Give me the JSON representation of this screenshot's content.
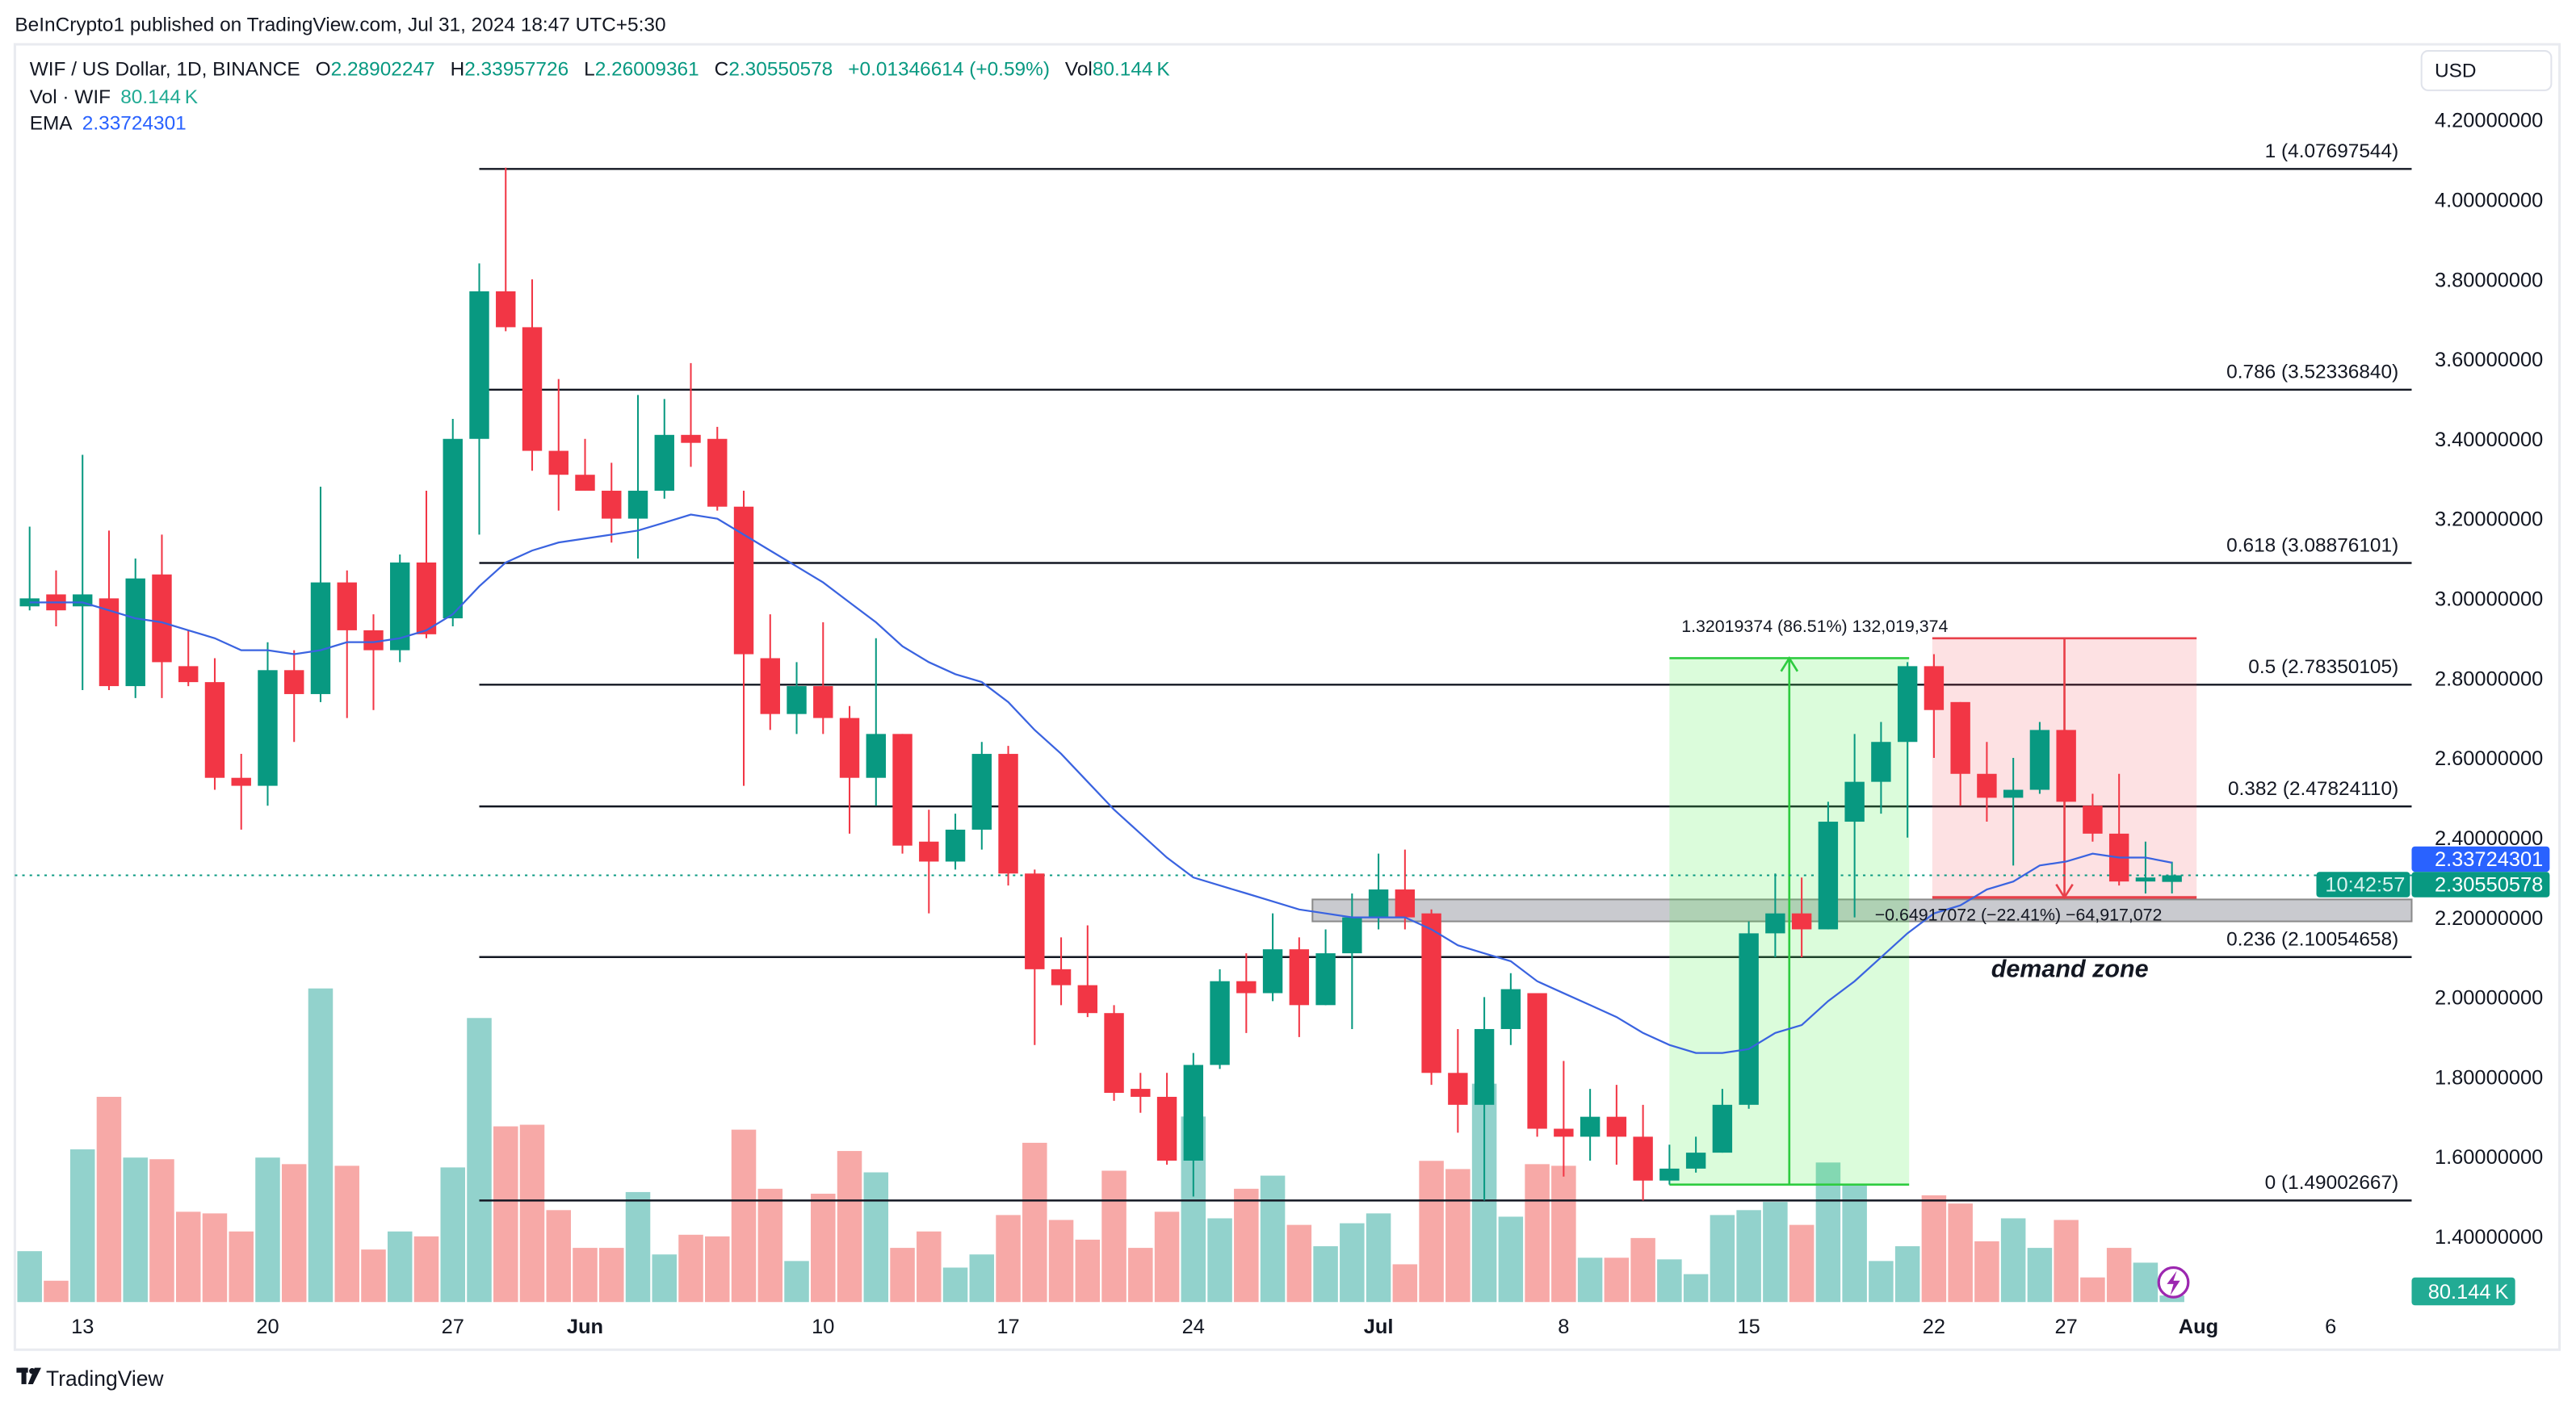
{
  "publish_line": "BeInCrypto1 published on TradingView.com, Jul 31, 2024 18:47 UTC+5:30",
  "legend": {
    "symbol": "WIF / US Dollar, 1D, BINANCE",
    "o_label": "O",
    "o": "2.28902247",
    "h_label": "H",
    "h": "2.33957726",
    "l_label": "L",
    "l": "2.26009361",
    "c_label": "C",
    "c": "2.30550578",
    "change": "+0.01346614 (+0.59%)",
    "vol_label": "Vol",
    "vol": "80.144 K",
    "vol_ind_label": "Vol · WIF",
    "vol_ind_value": "80.144 K",
    "ema_label": "EMA",
    "ema_value": "2.33724301"
  },
  "currency_button": "USD",
  "colors": {
    "up": "#089981",
    "down": "#f23645",
    "vol_up": "#92d2cc",
    "vol_down": "#f7a9a7",
    "ema": "#3a63e0",
    "lightning": "#9c27b0"
  },
  "price_tags": {
    "ema": "2.33724301",
    "last": "2.30550578",
    "countdown": "10:42:57",
    "volume": "80.144 K"
  },
  "logo": "TradingView",
  "annotations": {
    "demand_zone": "demand zone",
    "up_measure": "1.32019374 (86.51%) 132,019,374",
    "down_measure": "−0.64917072 (−22.41%) −64,917,072"
  },
  "chart_data": {
    "type": "candlestick",
    "symbol": "WIF / US Dollar",
    "interval": "1D",
    "ylim": [
      1.3,
      4.3
    ],
    "y_ticks": [
      "4.20000000",
      "4.00000000",
      "3.80000000",
      "3.60000000",
      "3.40000000",
      "3.20000000",
      "3.00000000",
      "2.80000000",
      "2.60000000",
      "2.40000000",
      "2.20000000",
      "2.00000000",
      "1.80000000",
      "1.60000000",
      "1.40000000"
    ],
    "x_ticks": [
      {
        "date": "2024-05-13",
        "label": "13",
        "bold": false
      },
      {
        "date": "2024-05-20",
        "label": "20",
        "bold": false
      },
      {
        "date": "2024-05-27",
        "label": "27",
        "bold": false
      },
      {
        "date": "2024-06-01",
        "label": "Jun",
        "bold": true
      },
      {
        "date": "2024-06-10",
        "label": "10",
        "bold": false
      },
      {
        "date": "2024-06-17",
        "label": "17",
        "bold": false
      },
      {
        "date": "2024-06-24",
        "label": "24",
        "bold": false
      },
      {
        "date": "2024-07-01",
        "label": "Jul",
        "bold": true
      },
      {
        "date": "2024-07-08",
        "label": "8",
        "bold": false
      },
      {
        "date": "2024-07-15",
        "label": "15",
        "bold": false
      },
      {
        "date": "2024-07-22",
        "label": "22",
        "bold": false
      },
      {
        "date": "2024-07-27",
        "label": "27",
        "bold": false
      },
      {
        "date": "2024-08-01",
        "label": "Aug",
        "bold": true
      },
      {
        "date": "2024-08-06",
        "label": "6",
        "bold": false
      }
    ],
    "candles": [
      {
        "date": "2024-05-11",
        "o": 2.98,
        "h": 3.18,
        "l": 2.97,
        "c": 3.0
      },
      {
        "date": "2024-05-12",
        "o": 3.01,
        "h": 3.07,
        "l": 2.93,
        "c": 2.97
      },
      {
        "date": "2024-05-13",
        "o": 2.98,
        "h": 3.36,
        "l": 2.77,
        "c": 3.01
      },
      {
        "date": "2024-05-14",
        "o": 3.0,
        "h": 3.17,
        "l": 2.77,
        "c": 2.78
      },
      {
        "date": "2024-05-15",
        "o": 2.78,
        "h": 3.1,
        "l": 2.75,
        "c": 3.05
      },
      {
        "date": "2024-05-16",
        "o": 3.06,
        "h": 3.16,
        "l": 2.75,
        "c": 2.84
      },
      {
        "date": "2024-05-17",
        "o": 2.83,
        "h": 2.92,
        "l": 2.78,
        "c": 2.79
      },
      {
        "date": "2024-05-18",
        "o": 2.79,
        "h": 2.85,
        "l": 2.52,
        "c": 2.55
      },
      {
        "date": "2024-05-19",
        "o": 2.55,
        "h": 2.61,
        "l": 2.42,
        "c": 2.53
      },
      {
        "date": "2024-05-20",
        "o": 2.53,
        "h": 2.89,
        "l": 2.48,
        "c": 2.82
      },
      {
        "date": "2024-05-21",
        "o": 2.82,
        "h": 2.87,
        "l": 2.64,
        "c": 2.76
      },
      {
        "date": "2024-05-22",
        "o": 2.76,
        "h": 3.28,
        "l": 2.74,
        "c": 3.04
      },
      {
        "date": "2024-05-23",
        "o": 3.04,
        "h": 3.07,
        "l": 2.7,
        "c": 2.92
      },
      {
        "date": "2024-05-24",
        "o": 2.92,
        "h": 2.96,
        "l": 2.72,
        "c": 2.87
      },
      {
        "date": "2024-05-25",
        "o": 2.87,
        "h": 3.11,
        "l": 2.84,
        "c": 3.09
      },
      {
        "date": "2024-05-26",
        "o": 3.09,
        "h": 3.27,
        "l": 2.9,
        "c": 2.91
      },
      {
        "date": "2024-05-27",
        "o": 2.95,
        "h": 3.45,
        "l": 2.93,
        "c": 3.4
      },
      {
        "date": "2024-05-28",
        "o": 3.4,
        "h": 3.84,
        "l": 3.16,
        "c": 3.77
      },
      {
        "date": "2024-05-29",
        "o": 3.77,
        "h": 4.08,
        "l": 3.67,
        "c": 3.68
      },
      {
        "date": "2024-05-30",
        "o": 3.68,
        "h": 3.8,
        "l": 3.32,
        "c": 3.37
      },
      {
        "date": "2024-05-31",
        "o": 3.37,
        "h": 3.55,
        "l": 3.22,
        "c": 3.31
      },
      {
        "date": "2024-06-01",
        "o": 3.31,
        "h": 3.4,
        "l": 3.27,
        "c": 3.27
      },
      {
        "date": "2024-06-02",
        "o": 3.27,
        "h": 3.34,
        "l": 3.14,
        "c": 3.2
      },
      {
        "date": "2024-06-03",
        "o": 3.2,
        "h": 3.51,
        "l": 3.1,
        "c": 3.27
      },
      {
        "date": "2024-06-04",
        "o": 3.27,
        "h": 3.5,
        "l": 3.25,
        "c": 3.41
      },
      {
        "date": "2024-06-05",
        "o": 3.41,
        "h": 3.59,
        "l": 3.33,
        "c": 3.39
      },
      {
        "date": "2024-06-06",
        "o": 3.4,
        "h": 3.43,
        "l": 3.22,
        "c": 3.23
      },
      {
        "date": "2024-06-07",
        "o": 3.23,
        "h": 3.27,
        "l": 2.53,
        "c": 2.86
      },
      {
        "date": "2024-06-08",
        "o": 2.85,
        "h": 2.96,
        "l": 2.67,
        "c": 2.71
      },
      {
        "date": "2024-06-09",
        "o": 2.71,
        "h": 2.84,
        "l": 2.66,
        "c": 2.78
      },
      {
        "date": "2024-06-10",
        "o": 2.78,
        "h": 2.94,
        "l": 2.66,
        "c": 2.7
      },
      {
        "date": "2024-06-11",
        "o": 2.7,
        "h": 2.73,
        "l": 2.41,
        "c": 2.55
      },
      {
        "date": "2024-06-12",
        "o": 2.55,
        "h": 2.9,
        "l": 2.48,
        "c": 2.66
      },
      {
        "date": "2024-06-13",
        "o": 2.66,
        "h": 2.66,
        "l": 2.36,
        "c": 2.38
      },
      {
        "date": "2024-06-14",
        "o": 2.39,
        "h": 2.47,
        "l": 2.21,
        "c": 2.34
      },
      {
        "date": "2024-06-15",
        "o": 2.34,
        "h": 2.46,
        "l": 2.32,
        "c": 2.42
      },
      {
        "date": "2024-06-16",
        "o": 2.42,
        "h": 2.64,
        "l": 2.37,
        "c": 2.61
      },
      {
        "date": "2024-06-17",
        "o": 2.61,
        "h": 2.63,
        "l": 2.28,
        "c": 2.31
      },
      {
        "date": "2024-06-18",
        "o": 2.31,
        "h": 2.32,
        "l": 1.88,
        "c": 2.07
      },
      {
        "date": "2024-06-19",
        "o": 2.07,
        "h": 2.15,
        "l": 1.98,
        "c": 2.03
      },
      {
        "date": "2024-06-20",
        "o": 2.03,
        "h": 2.18,
        "l": 1.95,
        "c": 1.96
      },
      {
        "date": "2024-06-21",
        "o": 1.96,
        "h": 1.98,
        "l": 1.74,
        "c": 1.76
      },
      {
        "date": "2024-06-22",
        "o": 1.77,
        "h": 1.81,
        "l": 1.71,
        "c": 1.75
      },
      {
        "date": "2024-06-23",
        "o": 1.75,
        "h": 1.81,
        "l": 1.58,
        "c": 1.59
      },
      {
        "date": "2024-06-24",
        "o": 1.59,
        "h": 1.86,
        "l": 1.5,
        "c": 1.83
      },
      {
        "date": "2024-06-25",
        "o": 1.83,
        "h": 2.07,
        "l": 1.82,
        "c": 2.04
      },
      {
        "date": "2024-06-26",
        "o": 2.04,
        "h": 2.11,
        "l": 1.91,
        "c": 2.01
      },
      {
        "date": "2024-06-27",
        "o": 2.01,
        "h": 2.21,
        "l": 1.99,
        "c": 2.12
      },
      {
        "date": "2024-06-28",
        "o": 2.12,
        "h": 2.15,
        "l": 1.9,
        "c": 1.98
      },
      {
        "date": "2024-06-29",
        "o": 1.98,
        "h": 2.17,
        "l": 1.98,
        "c": 2.11
      },
      {
        "date": "2024-06-30",
        "o": 2.11,
        "h": 2.26,
        "l": 1.92,
        "c": 2.2
      },
      {
        "date": "2024-07-01",
        "o": 2.2,
        "h": 2.36,
        "l": 2.17,
        "c": 2.27
      },
      {
        "date": "2024-07-02",
        "o": 2.27,
        "h": 2.37,
        "l": 2.17,
        "c": 2.2
      },
      {
        "date": "2024-07-03",
        "o": 2.21,
        "h": 2.22,
        "l": 1.78,
        "c": 1.81
      },
      {
        "date": "2024-07-04",
        "o": 1.81,
        "h": 1.92,
        "l": 1.66,
        "c": 1.73
      },
      {
        "date": "2024-07-05",
        "o": 1.73,
        "h": 2.0,
        "l": 1.49,
        "c": 1.92
      },
      {
        "date": "2024-07-06",
        "o": 1.92,
        "h": 2.06,
        "l": 1.88,
        "c": 2.02
      },
      {
        "date": "2024-07-07",
        "o": 2.01,
        "h": 2.01,
        "l": 1.65,
        "c": 1.67
      },
      {
        "date": "2024-07-08",
        "o": 1.67,
        "h": 1.84,
        "l": 1.55,
        "c": 1.65
      },
      {
        "date": "2024-07-09",
        "o": 1.65,
        "h": 1.77,
        "l": 1.59,
        "c": 1.7
      },
      {
        "date": "2024-07-10",
        "o": 1.7,
        "h": 1.78,
        "l": 1.58,
        "c": 1.65
      },
      {
        "date": "2024-07-11",
        "o": 1.65,
        "h": 1.73,
        "l": 1.49,
        "c": 1.54
      },
      {
        "date": "2024-07-12",
        "o": 1.54,
        "h": 1.63,
        "l": 1.53,
        "c": 1.57
      },
      {
        "date": "2024-07-13",
        "o": 1.57,
        "h": 1.65,
        "l": 1.56,
        "c": 1.61
      },
      {
        "date": "2024-07-14",
        "o": 1.61,
        "h": 1.77,
        "l": 1.61,
        "c": 1.73
      },
      {
        "date": "2024-07-15",
        "o": 1.73,
        "h": 2.19,
        "l": 1.72,
        "c": 2.16
      },
      {
        "date": "2024-07-16",
        "o": 2.16,
        "h": 2.31,
        "l": 2.1,
        "c": 2.21
      },
      {
        "date": "2024-07-17",
        "o": 2.21,
        "h": 2.3,
        "l": 2.1,
        "c": 2.17
      },
      {
        "date": "2024-07-18",
        "o": 2.17,
        "h": 2.49,
        "l": 2.17,
        "c": 2.44
      },
      {
        "date": "2024-07-19",
        "o": 2.44,
        "h": 2.66,
        "l": 2.2,
        "c": 2.54
      },
      {
        "date": "2024-07-20",
        "o": 2.54,
        "h": 2.69,
        "l": 2.46,
        "c": 2.64
      },
      {
        "date": "2024-07-21",
        "o": 2.64,
        "h": 2.84,
        "l": 2.4,
        "c": 2.83
      },
      {
        "date": "2024-07-22",
        "o": 2.83,
        "h": 2.86,
        "l": 2.6,
        "c": 2.72
      },
      {
        "date": "2024-07-23",
        "o": 2.74,
        "h": 2.74,
        "l": 2.48,
        "c": 2.56
      },
      {
        "date": "2024-07-24",
        "o": 2.56,
        "h": 2.64,
        "l": 2.44,
        "c": 2.5
      },
      {
        "date": "2024-07-25",
        "o": 2.5,
        "h": 2.6,
        "l": 2.33,
        "c": 2.52
      },
      {
        "date": "2024-07-26",
        "o": 2.52,
        "h": 2.69,
        "l": 2.51,
        "c": 2.67
      },
      {
        "date": "2024-07-27",
        "o": 2.67,
        "h": 2.67,
        "l": 2.49,
        "c": 2.49
      },
      {
        "date": "2024-07-28",
        "o": 2.48,
        "h": 2.51,
        "l": 2.39,
        "c": 2.41
      },
      {
        "date": "2024-07-29",
        "o": 2.41,
        "h": 2.56,
        "l": 2.28,
        "c": 2.29
      },
      {
        "date": "2024-07-30",
        "o": 2.29,
        "h": 2.39,
        "l": 2.26,
        "c": 2.3
      },
      {
        "date": "2024-07-31",
        "o": 2.28902247,
        "h": 2.33957726,
        "l": 2.26009361,
        "c": 2.30550578
      }
    ],
    "volume_k": [
      620,
      260,
      1860,
      2500,
      1760,
      1740,
      1100,
      1080,
      860,
      1760,
      1680,
      3820,
      1660,
      640,
      860,
      800,
      1640,
      3460,
      2140,
      2160,
      1120,
      660,
      660,
      1340,
      580,
      820,
      800,
      2100,
      1380,
      500,
      1320,
      1840,
      1580,
      660,
      860,
      420,
      580,
      1060,
      1940,
      1000,
      760,
      1600,
      660,
      1100,
      2260,
      1020,
      1380,
      1540,
      940,
      680,
      960,
      1080,
      460,
      1720,
      1620,
      2660,
      1040,
      1680,
      1660,
      540,
      540,
      780,
      520,
      340,
      1060,
      1120,
      1220,
      940,
      1700,
      1420,
      500,
      680,
      1300,
      1200,
      740,
      1020,
      660,
      1000,
      300,
      660,
      480,
      80.144
    ],
    "ema": [
      2.99,
      2.99,
      2.99,
      2.97,
      2.95,
      2.94,
      2.92,
      2.9,
      2.87,
      2.87,
      2.86,
      2.87,
      2.89,
      2.89,
      2.9,
      2.92,
      2.96,
      3.03,
      3.09,
      3.12,
      3.14,
      3.15,
      3.16,
      3.17,
      3.19,
      3.21,
      3.2,
      3.16,
      3.12,
      3.08,
      3.04,
      2.99,
      2.94,
      2.88,
      2.84,
      2.81,
      2.79,
      2.74,
      2.67,
      2.61,
      2.54,
      2.47,
      2.41,
      2.35,
      2.3,
      2.28,
      2.26,
      2.24,
      2.22,
      2.21,
      2.2,
      2.2,
      2.2,
      2.17,
      2.13,
      2.11,
      2.09,
      2.04,
      2.01,
      1.98,
      1.95,
      1.91,
      1.88,
      1.86,
      1.86,
      1.87,
      1.91,
      1.93,
      1.99,
      2.04,
      2.1,
      2.16,
      2.21,
      2.23,
      2.27,
      2.29,
      2.33,
      2.34,
      2.36,
      2.35,
      2.35,
      2.33724301
    ],
    "fib_start_date": "2024-05-28",
    "fib_levels": [
      {
        "ratio": "1",
        "price": 4.07697544,
        "label": "1 (4.07697544)"
      },
      {
        "ratio": "0.786",
        "price": 3.5233684,
        "label": "0.786 (3.52336840)"
      },
      {
        "ratio": "0.618",
        "price": 3.08876101,
        "label": "0.618 (3.08876101)"
      },
      {
        "ratio": "0.5",
        "price": 2.78350105,
        "label": "0.5 (2.78350105)"
      },
      {
        "ratio": "0.382",
        "price": 2.4782411,
        "label": "0.382 (2.47824110)"
      },
      {
        "ratio": "0.236",
        "price": 2.10054658,
        "label": "0.236 (2.10054658)"
      },
      {
        "ratio": "0",
        "price": 1.49002667,
        "label": "0 (1.49002667)"
      }
    ],
    "demand_zone": {
      "from_date": "2024-06-29",
      "top": 2.245,
      "bottom": 2.19
    },
    "up_range": {
      "from_date": "2024-07-12",
      "to_date": "2024-07-21",
      "low": 1.53,
      "high": 2.85
    },
    "down_range": {
      "from_date": "2024-07-22",
      "to_date": "2024-07-31",
      "high": 2.9,
      "low": 2.25
    },
    "last_price": 2.30550578
  }
}
